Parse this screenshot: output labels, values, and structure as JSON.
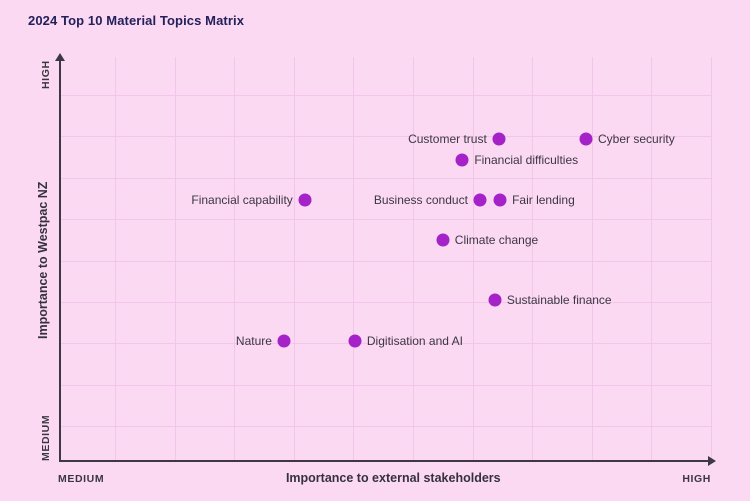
{
  "title": "2024 Top 10 Material Topics Matrix",
  "axes": {
    "y_title": "Importance to Westpac NZ",
    "x_title": "Importance to external stakeholders",
    "y_max_label": "HIGH",
    "y_min_label": "MEDIUM",
    "x_min_label": "MEDIUM",
    "x_max_label": "HIGH"
  },
  "colors": {
    "background": "#FBD9F3",
    "gridline": "#F1C6EA",
    "axis": "#3D3846",
    "dot": "#A522C8",
    "title_text": "#23205A",
    "label_text": "#3B3742"
  },
  "chart_data": {
    "type": "scatter",
    "title": "2024 Top 10 Material Topics Matrix",
    "xlabel": "Importance to external stakeholders",
    "ylabel": "Importance to Westpac NZ",
    "x_range": [
      "MEDIUM",
      "HIGH"
    ],
    "y_range": [
      "MEDIUM",
      "HIGH"
    ],
    "grid": true,
    "points": [
      {
        "label": "Customer trust",
        "x": 67.4,
        "y": 79.7,
        "label_side": "left"
      },
      {
        "label": "Cyber security",
        "x": 80.8,
        "y": 79.7,
        "label_side": "right"
      },
      {
        "label": "Financial difficulties",
        "x": 61.8,
        "y": 74.5,
        "label_side": "right"
      },
      {
        "label": "Financial capability",
        "x": 37.6,
        "y": 64.6,
        "label_side": "left"
      },
      {
        "label": "Business conduct",
        "x": 64.5,
        "y": 64.6,
        "label_side": "left"
      },
      {
        "label": "Fair lending",
        "x": 67.6,
        "y": 64.6,
        "label_side": "right"
      },
      {
        "label": "Climate change",
        "x": 58.8,
        "y": 54.7,
        "label_side": "right"
      },
      {
        "label": "Sustainable finance",
        "x": 66.8,
        "y": 39.9,
        "label_side": "right"
      },
      {
        "label": "Nature",
        "x": 34.4,
        "y": 29.8,
        "label_side": "left"
      },
      {
        "label": "Digitisation and AI",
        "x": 45.3,
        "y": 29.8,
        "label_side": "right"
      }
    ]
  }
}
